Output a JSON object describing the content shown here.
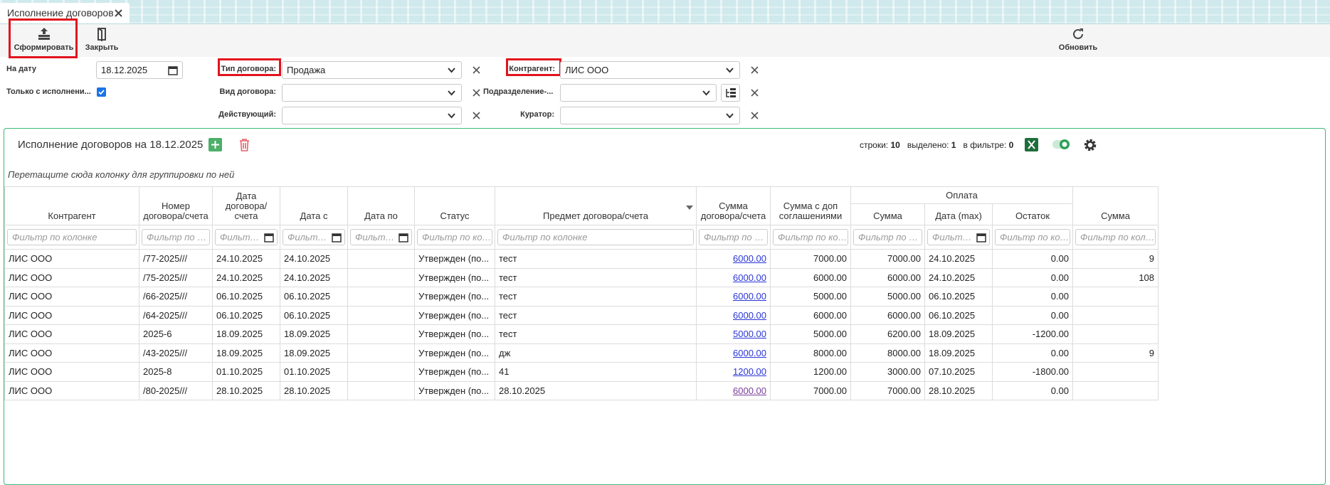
{
  "tab": {
    "title": "Исполнение договоров"
  },
  "toolbar": {
    "generate": "Сформировать",
    "close": "Закрыть",
    "refresh": "Обновить"
  },
  "filters": {
    "date_label": "На дату",
    "date_value": "18.12.2025",
    "only_label": "Только с исполнени...",
    "type_label": "Тип договора:",
    "type_value": "Продажа",
    "kind_label": "Вид договора:",
    "active_label": "Действующий:",
    "counterparty_label": "Контрагент:",
    "counterparty_value": "ЛИС ООО",
    "division_label": "Подразделение-...",
    "curator_label": "Куратор:"
  },
  "grid": {
    "title": "Исполнение договоров на 18.12.2025",
    "rows_label": "строки:",
    "rows_count": 10,
    "selected_label": "выделено:",
    "selected_count": 1,
    "filter_label": "в фильтре:",
    "filter_count": 0,
    "group_hint": "Перетащите сюда колонку для группировки по ней",
    "filter_placeholder": "Фильтр по колонке",
    "group_header": "Оплата",
    "columns": [
      "Контрагент",
      "Номер договора/счета",
      "Дата договора/ счета",
      "Дата с",
      "Дата по",
      "Статус",
      "Предмет договора/счета",
      "Сумма договора/счета",
      "Сумма с доп соглашениями",
      "Сумма",
      "Дата (max)",
      "Остаток",
      "Сумма"
    ],
    "rows": [
      [
        "ЛИС ООО",
        "/77-2025///",
        "24.10.2025",
        "24.10.2025",
        null,
        "Утвержден (по...",
        "тест",
        "6000.00",
        "7000.00",
        "7000.00",
        "24.10.2025",
        "0.00",
        "9"
      ],
      [
        "ЛИС ООО",
        "/75-2025///",
        "24.10.2025",
        "24.10.2025",
        null,
        "Утвержден (по...",
        "тест",
        "6000.00",
        "6000.00",
        "6000.00",
        "24.10.2025",
        "0.00",
        "108"
      ],
      [
        "ЛИС ООО",
        "/66-2025///",
        "06.10.2025",
        "06.10.2025",
        null,
        "Утвержден (по...",
        "тест",
        "6000.00",
        "5000.00",
        "5000.00",
        "06.10.2025",
        "0.00",
        null
      ],
      [
        "ЛИС ООО",
        "/64-2025///",
        "06.10.2025",
        "06.10.2025",
        null,
        "Утвержден (по...",
        "тест",
        "6000.00",
        "6000.00",
        "6000.00",
        "06.10.2025",
        "0.00",
        null
      ],
      [
        "ЛИС ООО",
        "2025-6",
        "18.09.2025",
        "18.09.2025",
        null,
        "Утвержден (по...",
        "тест",
        "5000.00",
        "5000.00",
        "6200.00",
        "18.09.2025",
        "-1200.00",
        null
      ],
      [
        "ЛИС ООО",
        "/43-2025///",
        "18.09.2025",
        "18.09.2025",
        null,
        "Утвержден (по...",
        "дж",
        "6000.00",
        "8000.00",
        "8000.00",
        "18.09.2025",
        "0.00",
        "9"
      ],
      [
        "ЛИС ООО",
        "2025-8",
        "01.10.2025",
        "01.10.2025",
        null,
        "Утвержден (по...",
        "41",
        "1200.00",
        "1200.00",
        "3000.00",
        "07.10.2025",
        "-1800.00",
        null
      ],
      [
        "ЛИС ООО",
        "/80-2025///",
        "28.10.2025",
        "28.10.2025",
        null,
        "Утвержден (по...",
        "28.10.2025",
        "6000.00",
        "7000.00",
        "7000.00",
        "28.10.2025",
        "0.00",
        null
      ]
    ]
  }
}
